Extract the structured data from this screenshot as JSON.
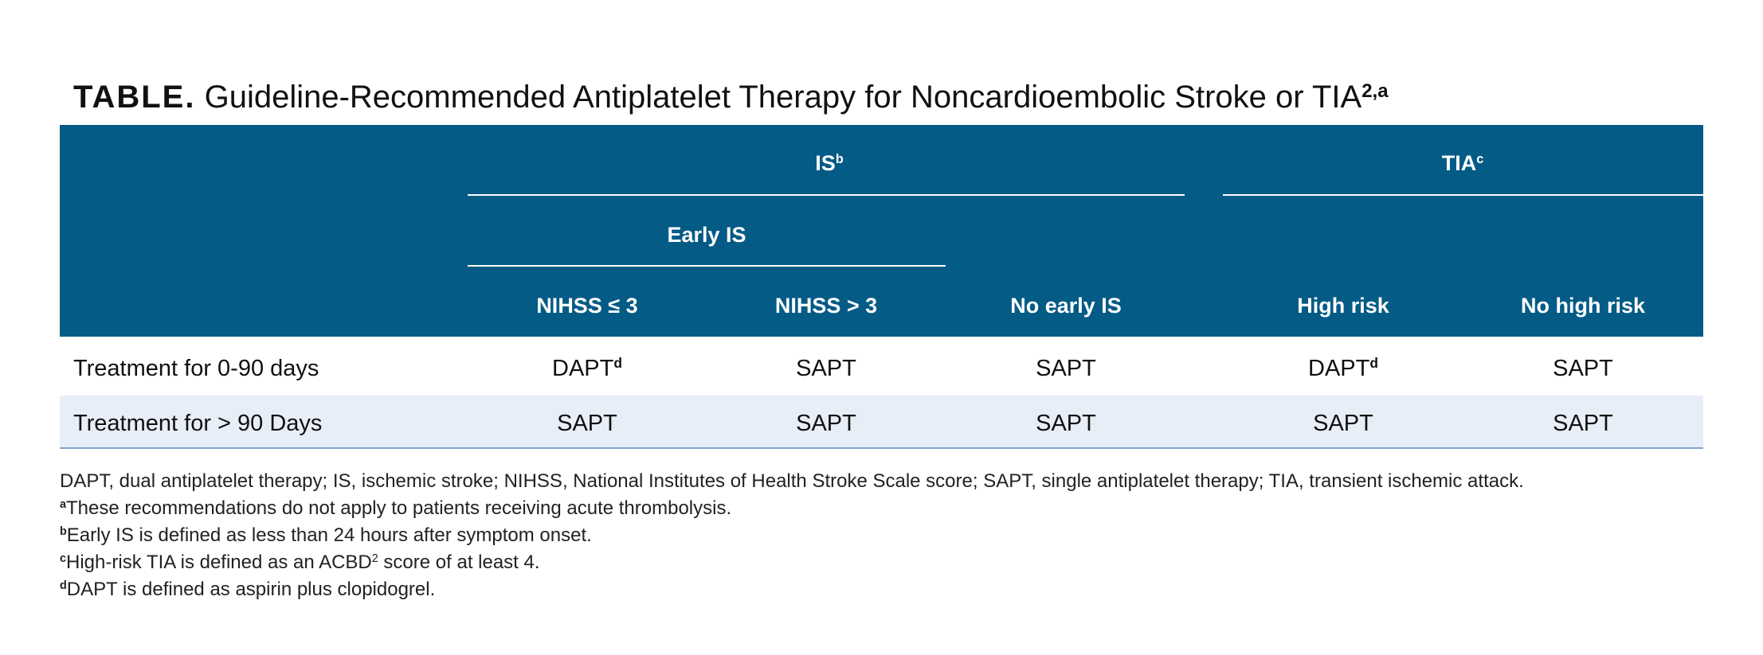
{
  "title": {
    "label": "TABLE.",
    "text": "Guideline-Recommended Antiplatelet Therapy for Noncardioembolic Stroke or TIA",
    "sup": "2,a"
  },
  "table": {
    "groups": [
      {
        "label": "IS",
        "sup": "b"
      },
      {
        "label": "TIA",
        "sup": "c"
      }
    ],
    "subgroup": "Early IS",
    "columns": [
      "NIHSS ≤ 3",
      "NIHSS > 3",
      "No early IS",
      "High risk",
      "No high risk"
    ],
    "rows": [
      {
        "label": "Treatment for 0-90 days",
        "cells": [
          {
            "text": "DAPT",
            "sup": "d"
          },
          {
            "text": "SAPT"
          },
          {
            "text": "SAPT"
          },
          {
            "text": "DAPT",
            "sup": "d"
          },
          {
            "text": "SAPT"
          }
        ]
      },
      {
        "label": "Treatment for > 90 Days",
        "cells": [
          {
            "text": "SAPT"
          },
          {
            "text": "SAPT"
          },
          {
            "text": "SAPT"
          },
          {
            "text": "SAPT"
          },
          {
            "text": "SAPT"
          }
        ]
      }
    ]
  },
  "footnotes": [
    {
      "text": "DAPT, dual antiplatelet therapy; IS, ischemic stroke; NIHSS, National Institutes of Health Stroke Scale score; SAPT, single antiplatelet therapy; TIA, transient ischemic attack."
    },
    {
      "mark": "a",
      "text": "These recommendations do not apply to patients receiving acute thrombolysis."
    },
    {
      "mark": "b",
      "text": "Early IS is defined as less than 24 hours after symptom onset."
    },
    {
      "mark": "c",
      "text": "High-risk TIA is defined as an ACBD",
      "sup": "2",
      "after": " score of at least 4."
    },
    {
      "mark": "d",
      "text": "DAPT is defined as aspirin plus clopidogrel."
    }
  ]
}
